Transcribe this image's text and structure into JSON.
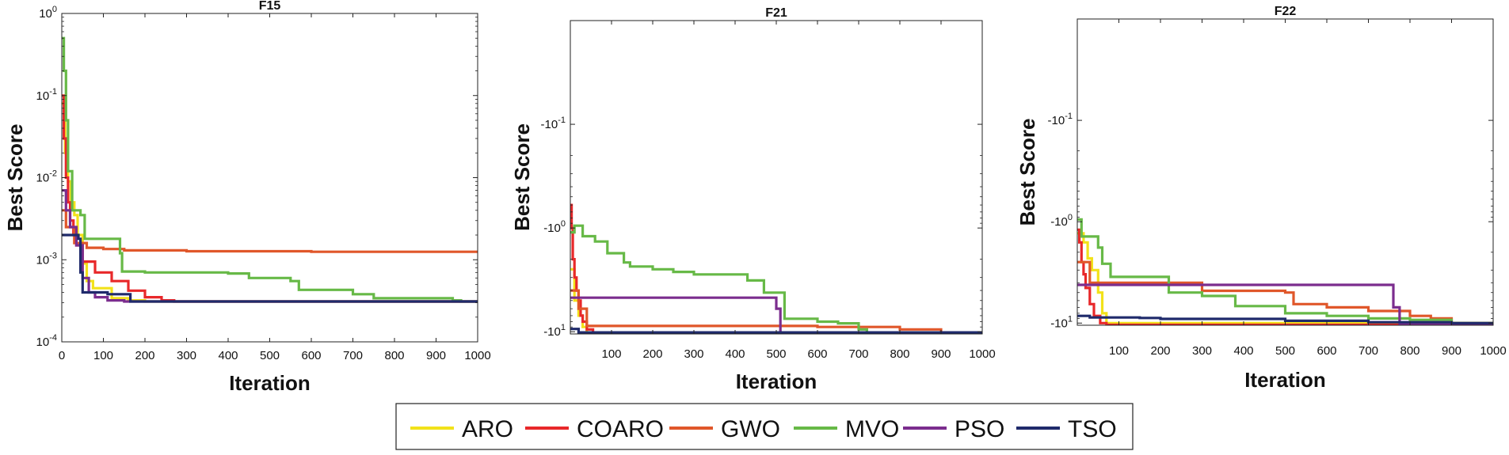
{
  "chart_data": [
    {
      "type": "line",
      "title": "F15",
      "xlabel": "Iteration",
      "ylabel": "Best Score",
      "yscale": "log",
      "xlim": [
        0,
        1000
      ],
      "ylim": [
        0.0001,
        1
      ],
      "xticks": [
        0,
        100,
        200,
        300,
        400,
        500,
        600,
        700,
        800,
        900,
        1000
      ],
      "xtick_labels": [
        "0",
        "100",
        "200",
        "300",
        "400",
        "500",
        "600",
        "700",
        "800",
        "900",
        "1000"
      ],
      "yticks": [
        0.0001,
        0.001,
        0.01,
        0.1,
        1
      ],
      "ytick_labels": [
        {
          "base": "10",
          "exp": "-4"
        },
        {
          "base": "10",
          "exp": "-3"
        },
        {
          "base": "10",
          "exp": "-2"
        },
        {
          "base": "10",
          "exp": "-1"
        },
        {
          "base": "10",
          "exp": "0"
        }
      ],
      "series": [
        {
          "name": "ARO",
          "color": "#f2e21a",
          "step": true,
          "points": [
            [
              1,
              0.08
            ],
            [
              8,
              0.02
            ],
            [
              15,
              0.009
            ],
            [
              22,
              0.005
            ],
            [
              30,
              0.0035
            ],
            [
              38,
              0.002
            ],
            [
              50,
              0.0009
            ],
            [
              60,
              0.00055
            ],
            [
              75,
              0.00045
            ],
            [
              100,
              0.00045
            ],
            [
              120,
              0.00034
            ],
            [
              160,
              0.00032
            ],
            [
              200,
              0.00031
            ],
            [
              1000,
              0.00031
            ]
          ]
        },
        {
          "name": "COARO",
          "color": "#e8282a",
          "step": true,
          "points": [
            [
              1,
              0.1
            ],
            [
              5,
              0.03
            ],
            [
              10,
              0.01
            ],
            [
              15,
              0.005
            ],
            [
              20,
              0.003
            ],
            [
              28,
              0.002
            ],
            [
              35,
              0.0015
            ],
            [
              50,
              0.00095
            ],
            [
              80,
              0.0007
            ],
            [
              120,
              0.00055
            ],
            [
              160,
              0.00042
            ],
            [
              200,
              0.00035
            ],
            [
              240,
              0.00032
            ],
            [
              270,
              0.00031
            ],
            [
              1000,
              0.00031
            ]
          ]
        },
        {
          "name": "GWO",
          "color": "#e0572a",
          "step": true,
          "points": [
            [
              1,
              0.004
            ],
            [
              10,
              0.0025
            ],
            [
              30,
              0.0016
            ],
            [
              60,
              0.0014
            ],
            [
              100,
              0.00135
            ],
            [
              150,
              0.0013
            ],
            [
              300,
              0.00127
            ],
            [
              600,
              0.00125
            ],
            [
              1000,
              0.00122
            ]
          ]
        },
        {
          "name": "MVO",
          "color": "#67b947",
          "step": true,
          "points": [
            [
              1,
              0.5
            ],
            [
              5,
              0.2
            ],
            [
              10,
              0.05
            ],
            [
              15,
              0.012
            ],
            [
              25,
              0.004
            ],
            [
              45,
              0.0035
            ],
            [
              55,
              0.0018
            ],
            [
              140,
              0.0012
            ],
            [
              145,
              0.00072
            ],
            [
              200,
              0.0007
            ],
            [
              400,
              0.00068
            ],
            [
              450,
              0.0006
            ],
            [
              550,
              0.00055
            ],
            [
              570,
              0.00043
            ],
            [
              700,
              0.00038
            ],
            [
              750,
              0.00034
            ],
            [
              940,
              0.00032
            ],
            [
              960,
              0.00031
            ],
            [
              1000,
              0.00031
            ]
          ]
        },
        {
          "name": "PSO",
          "color": "#7b2d8e",
          "step": true,
          "points": [
            [
              1,
              0.007
            ],
            [
              10,
              0.004
            ],
            [
              20,
              0.0025
            ],
            [
              35,
              0.0015
            ],
            [
              50,
              0.0006
            ],
            [
              65,
              0.0004
            ],
            [
              80,
              0.00035
            ],
            [
              110,
              0.00032
            ],
            [
              150,
              0.00031
            ],
            [
              1000,
              0.00031
            ]
          ]
        },
        {
          "name": "TSO",
          "color": "#1f2a6b",
          "step": true,
          "points": [
            [
              1,
              0.002
            ],
            [
              40,
              0.0018
            ],
            [
              45,
              0.0007
            ],
            [
              50,
              0.0004
            ],
            [
              100,
              0.0004
            ],
            [
              110,
              0.00038
            ],
            [
              160,
              0.00038
            ],
            [
              165,
              0.00031
            ],
            [
              1000,
              0.00031
            ]
          ]
        }
      ]
    },
    {
      "type": "line",
      "title": "F21",
      "xlabel": "Iteration",
      "ylabel": "Best Score",
      "yscale": "-log",
      "xlim": [
        0,
        1000
      ],
      "ylim": [
        -10.5,
        -0.01
      ],
      "xticks": [
        100,
        200,
        300,
        400,
        500,
        600,
        700,
        800,
        900,
        1000
      ],
      "xtick_labels": [
        "100",
        "200",
        "300",
        "400",
        "500",
        "600",
        "700",
        "800",
        "900",
        "1000"
      ],
      "yticks": [
        -0.1,
        -1,
        -10
      ],
      "ytick_labels": [
        {
          "base": "-10",
          "exp": "-1"
        },
        {
          "base": "-10",
          "exp": "0"
        },
        {
          "base": "-10",
          "exp": "1"
        }
      ],
      "series": [
        {
          "name": "ARO",
          "color": "#f2e21a",
          "step": true,
          "points": [
            [
              1,
              -2.5
            ],
            [
              10,
              -5
            ],
            [
              20,
              -7
            ],
            [
              30,
              -9
            ],
            [
              40,
              -10.15
            ],
            [
              1000,
              -10.15
            ]
          ]
        },
        {
          "name": "COARO",
          "color": "#e8282a",
          "step": true,
          "points": [
            [
              1,
              -0.6
            ],
            [
              3,
              -1
            ],
            [
              6,
              -2
            ],
            [
              10,
              -3
            ],
            [
              15,
              -4
            ],
            [
              20,
              -5
            ],
            [
              25,
              -7
            ],
            [
              30,
              -8
            ],
            [
              40,
              -9.5
            ],
            [
              55,
              -10.15
            ],
            [
              1000,
              -10.15
            ]
          ]
        },
        {
          "name": "GWO",
          "color": "#e0572a",
          "step": true,
          "points": [
            [
              1,
              -4
            ],
            [
              20,
              -6
            ],
            [
              40,
              -8.8
            ],
            [
              300,
              -8.8
            ],
            [
              600,
              -9.0
            ],
            [
              800,
              -9.5
            ],
            [
              900,
              -10.15
            ],
            [
              1000,
              -10.15
            ]
          ]
        },
        {
          "name": "MVO",
          "color": "#67b947",
          "step": true,
          "points": [
            [
              1,
              -1.1
            ],
            [
              10,
              -0.95
            ],
            [
              30,
              -1.2
            ],
            [
              60,
              -1.35
            ],
            [
              90,
              -1.75
            ],
            [
              130,
              -2.15
            ],
            [
              145,
              -2.35
            ],
            [
              200,
              -2.5
            ],
            [
              250,
              -2.65
            ],
            [
              300,
              -2.8
            ],
            [
              430,
              -3.2
            ],
            [
              470,
              -4.2
            ],
            [
              520,
              -7.5
            ],
            [
              600,
              -8.0
            ],
            [
              650,
              -8.3
            ],
            [
              700,
              -9.5
            ],
            [
              720,
              -10.15
            ],
            [
              1000,
              -10.15
            ]
          ]
        },
        {
          "name": "PSO",
          "color": "#7b2d8e",
          "step": true,
          "points": [
            [
              1,
              -4.7
            ],
            [
              480,
              -4.7
            ],
            [
              500,
              -6.0
            ],
            [
              510,
              -10.15
            ],
            [
              1000,
              -10.15
            ]
          ]
        },
        {
          "name": "TSO",
          "color": "#1f2a6b",
          "step": true,
          "points": [
            [
              1,
              -9.4
            ],
            [
              15,
              -9.4
            ],
            [
              20,
              -10.15
            ],
            [
              1000,
              -10.15
            ]
          ]
        }
      ]
    },
    {
      "type": "line",
      "title": "F22",
      "xlabel": "Iteration",
      "ylabel": "Best Score",
      "yscale": "-log",
      "xlim": [
        0,
        1000
      ],
      "ylim": [
        -10.5,
        -0.01
      ],
      "xticks": [
        100,
        200,
        300,
        400,
        500,
        600,
        700,
        800,
        900,
        1000
      ],
      "xtick_labels": [
        "100",
        "200",
        "300",
        "400",
        "500",
        "600",
        "700",
        "800",
        "900",
        "1000"
      ],
      "yticks": [
        -0.1,
        -1,
        -10
      ],
      "ytick_labels": [
        {
          "base": "-10",
          "exp": "-1"
        },
        {
          "base": "-10",
          "exp": "0"
        },
        {
          "base": "-10",
          "exp": "1"
        }
      ],
      "series": [
        {
          "name": "ARO",
          "color": "#f2e21a",
          "step": true,
          "points": [
            [
              1,
              -1.3
            ],
            [
              15,
              -1.6
            ],
            [
              25,
              -2.3
            ],
            [
              35,
              -3.0
            ],
            [
              50,
              -5.0
            ],
            [
              60,
              -8.0
            ],
            [
              70,
              -10.0
            ],
            [
              1000,
              -10.4
            ]
          ]
        },
        {
          "name": "COARO",
          "color": "#e8282a",
          "step": true,
          "points": [
            [
              1,
              -1.2
            ],
            [
              5,
              -1.6
            ],
            [
              10,
              -2.5
            ],
            [
              15,
              -3.3
            ],
            [
              20,
              -4.5
            ],
            [
              30,
              -6.5
            ],
            [
              40,
              -8.5
            ],
            [
              55,
              -10.0
            ],
            [
              70,
              -10.4
            ],
            [
              1000,
              -10.4
            ]
          ]
        },
        {
          "name": "GWO",
          "color": "#e0572a",
          "step": true,
          "points": [
            [
              1,
              -2.5
            ],
            [
              30,
              -4.0
            ],
            [
              220,
              -4.0
            ],
            [
              300,
              -4.8
            ],
            [
              500,
              -5.0
            ],
            [
              520,
              -6.5
            ],
            [
              600,
              -7.0
            ],
            [
              700,
              -7.6
            ],
            [
              800,
              -8.5
            ],
            [
              850,
              -9.0
            ],
            [
              900,
              -10.0
            ],
            [
              1000,
              -10.3
            ]
          ]
        },
        {
          "name": "MVO",
          "color": "#67b947",
          "step": true,
          "points": [
            [
              1,
              -0.95
            ],
            [
              10,
              -1.4
            ],
            [
              50,
              -1.8
            ],
            [
              60,
              -2.6
            ],
            [
              80,
              -3.5
            ],
            [
              220,
              -5.0
            ],
            [
              300,
              -5.4
            ],
            [
              380,
              -6.8
            ],
            [
              500,
              -8.0
            ],
            [
              600,
              -8.5
            ],
            [
              700,
              -9.0
            ],
            [
              800,
              -9.3
            ],
            [
              900,
              -10.0
            ],
            [
              1000,
              -10.3
            ]
          ]
        },
        {
          "name": "PSO",
          "color": "#7b2d8e",
          "step": true,
          "points": [
            [
              1,
              -4.2
            ],
            [
              750,
              -4.2
            ],
            [
              760,
              -7.0
            ],
            [
              775,
              -10.3
            ],
            [
              1000,
              -10.4
            ]
          ]
        },
        {
          "name": "TSO",
          "color": "#1f2a6b",
          "step": true,
          "points": [
            [
              1,
              -8.5
            ],
            [
              30,
              -8.8
            ],
            [
              150,
              -8.9
            ],
            [
              200,
              -9.1
            ],
            [
              500,
              -9.5
            ],
            [
              700,
              -9.8
            ],
            [
              900,
              -10.0
            ],
            [
              1000,
              -10.3
            ]
          ]
        }
      ]
    }
  ],
  "legend": {
    "entries": [
      {
        "label": "ARO",
        "color": "#f2e21a"
      },
      {
        "label": "COARO",
        "color": "#e8282a"
      },
      {
        "label": "GWO",
        "color": "#e0572a"
      },
      {
        "label": "MVO",
        "color": "#67b947"
      },
      {
        "label": "PSO",
        "color": "#7b2d8e"
      },
      {
        "label": "TSO",
        "color": "#1f2a6b"
      }
    ]
  }
}
